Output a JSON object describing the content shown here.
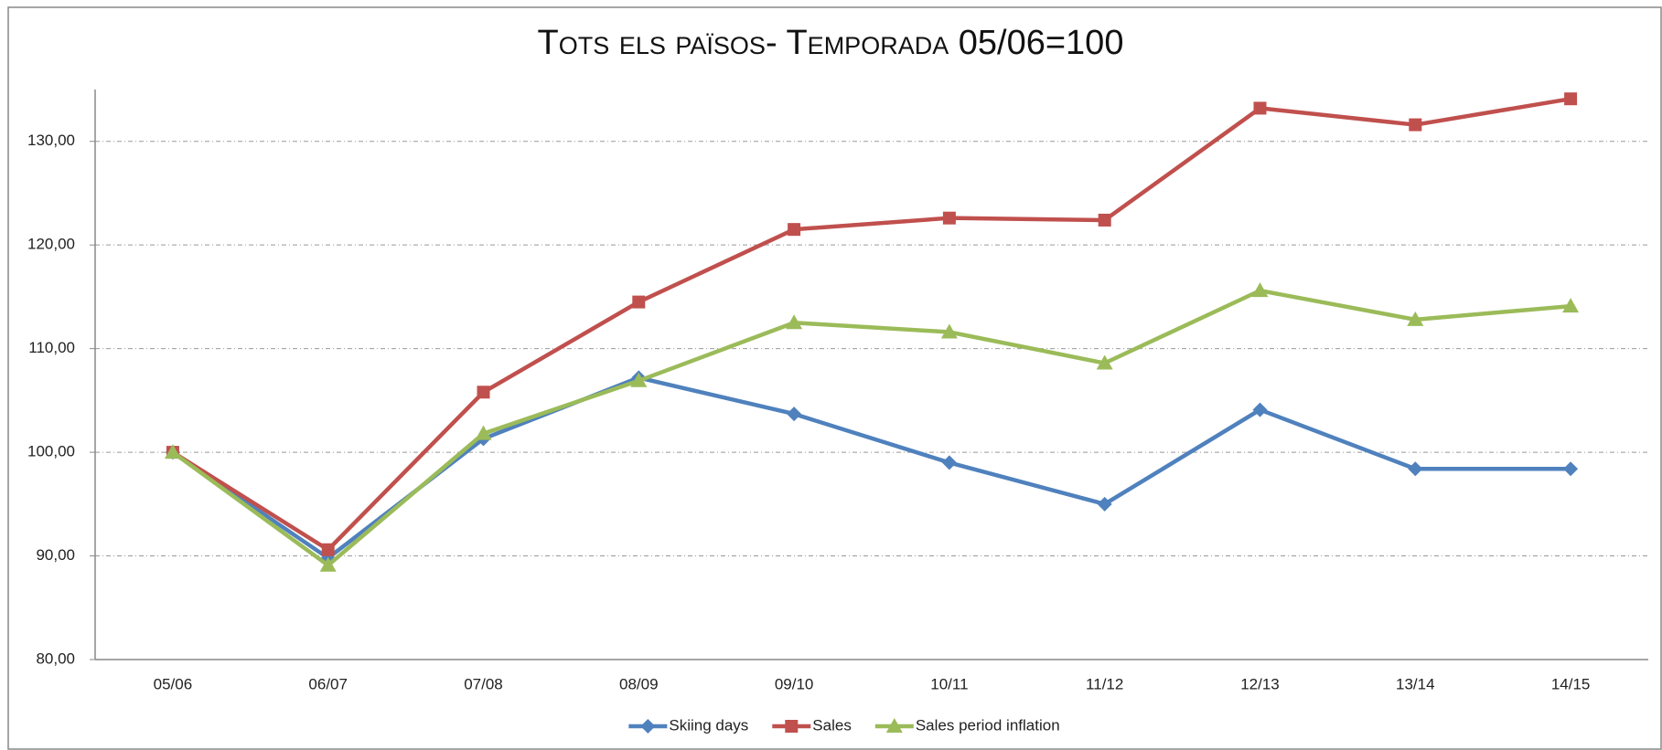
{
  "chart_data": {
    "type": "line",
    "title": "Tots els països- Temporada 05/06=100",
    "categories": [
      "05/06",
      "06/07",
      "07/08",
      "08/09",
      "09/10",
      "10/11",
      "11/12",
      "12/13",
      "13/14",
      "14/15"
    ],
    "series": [
      {
        "name": "Skiing days",
        "color": "#4f81bd",
        "marker": "diamond",
        "values": [
          100,
          89.8,
          101.3,
          107.2,
          103.7,
          99.0,
          95.0,
          104.1,
          98.4,
          98.4
        ]
      },
      {
        "name": "Sales",
        "color": "#c0504d",
        "marker": "square",
        "values": [
          100,
          90.6,
          105.8,
          114.5,
          121.5,
          122.6,
          122.4,
          133.2,
          131.6,
          134.1
        ]
      },
      {
        "name": "Sales period inflation",
        "color": "#9bbb59",
        "marker": "triangle",
        "values": [
          100,
          89.1,
          101.8,
          106.9,
          112.5,
          111.6,
          108.6,
          115.6,
          112.8,
          114.1
        ]
      }
    ],
    "ylim": [
      80,
      135
    ],
    "yticks": [
      {
        "value": 80,
        "label": "80,00"
      },
      {
        "value": 90,
        "label": "90,00"
      },
      {
        "value": 100,
        "label": "100,00"
      },
      {
        "value": 110,
        "label": "110,00"
      },
      {
        "value": 120,
        "label": "120,00"
      },
      {
        "value": 130,
        "label": "130,00"
      }
    ],
    "grid": true,
    "legend": "bottom"
  }
}
